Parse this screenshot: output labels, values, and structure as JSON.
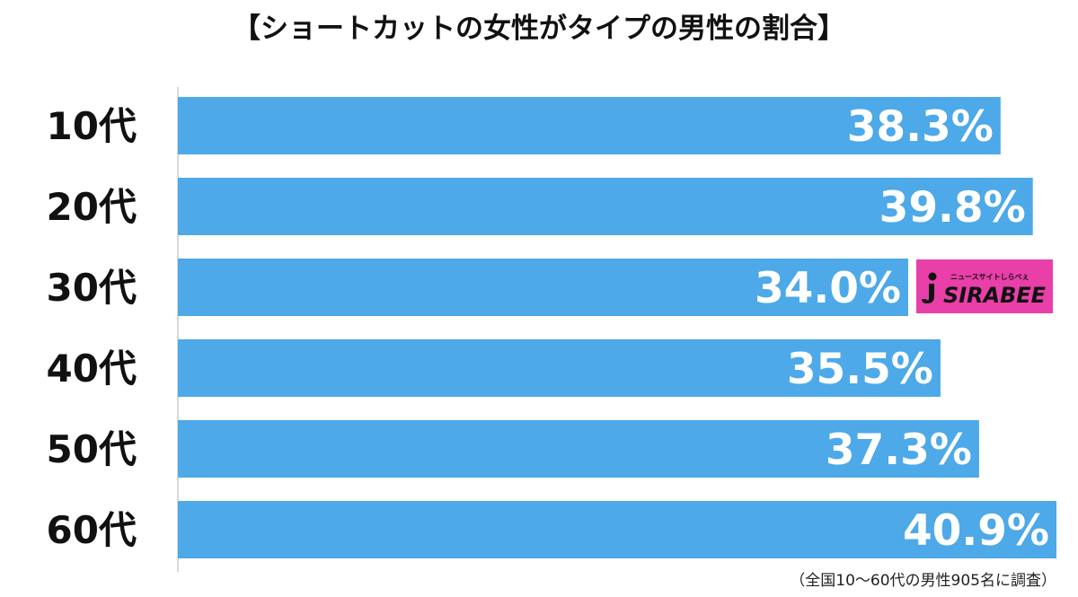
{
  "colors": {
    "bar": "#4DA9E8",
    "axis": "#CCCCCC",
    "logo_bg": "#E83FA9",
    "text": "#111111",
    "value_text": "#FFFFFF"
  },
  "footnote": "（全国10〜60代の男性905名に調査）",
  "logo": {
    "tagline": "ニュースサイトしらべぇ",
    "text": "SIRABEE",
    "icon": "sirabee-i-logo-icon"
  },
  "chart_data": {
    "type": "bar",
    "orientation": "horizontal",
    "title": "【ショートカットの女性がタイプの男性の割合】",
    "categories": [
      "10代",
      "20代",
      "30代",
      "40代",
      "50代",
      "60代"
    ],
    "values": [
      38.3,
      39.8,
      34.0,
      35.5,
      37.3,
      40.9
    ],
    "value_labels": [
      "38.3%",
      "39.8%",
      "34.0%",
      "35.5%",
      "37.3%",
      "40.9%"
    ],
    "unit": "%",
    "xlim": [
      0,
      40.9
    ],
    "grid": false,
    "legend": "none"
  }
}
